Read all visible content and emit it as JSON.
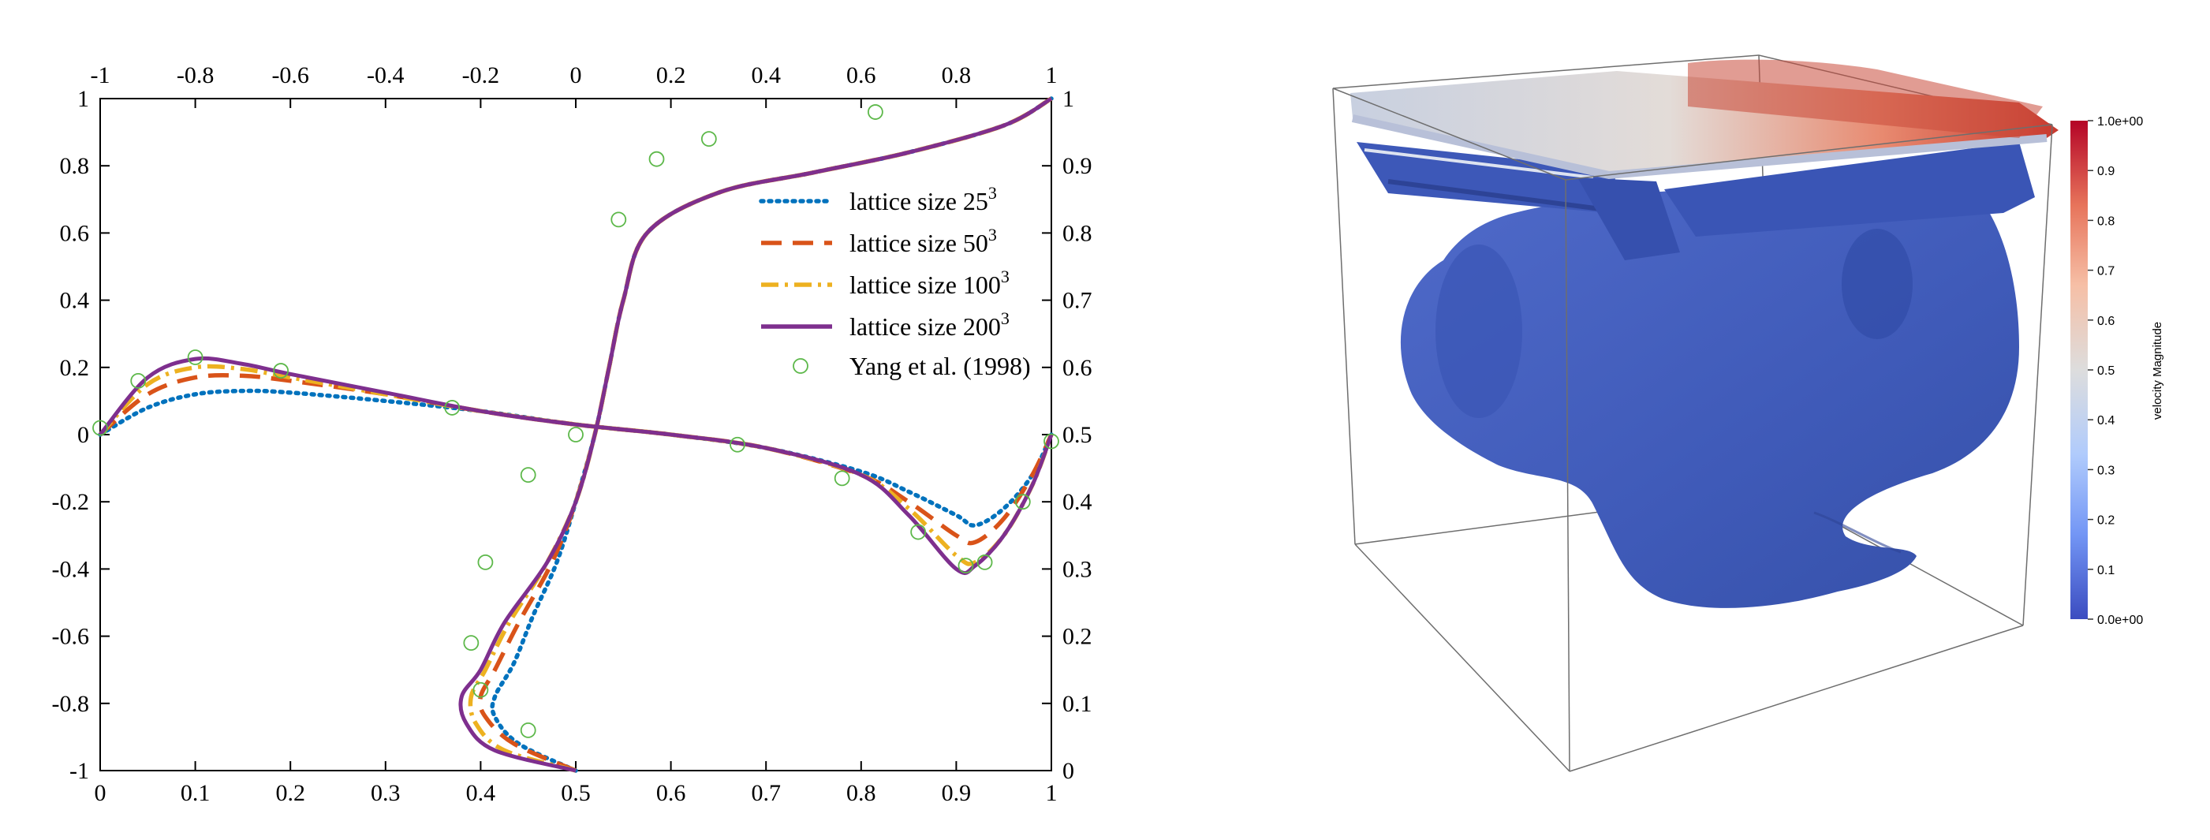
{
  "chart_data": [
    {
      "type": "line",
      "title": "",
      "axes": {
        "bottom": {
          "range": [
            0,
            1
          ],
          "ticks": [
            "0",
            "0.1",
            "0.2",
            "0.3",
            "0.4",
            "0.5",
            "0.6",
            "0.7",
            "0.8",
            "0.9",
            "1"
          ]
        },
        "top": {
          "range": [
            -1,
            1
          ],
          "ticks": [
            "-1",
            "-0.8",
            "-0.6",
            "-0.4",
            "-0.2",
            "0",
            "0.2",
            "0.4",
            "0.6",
            "0.8",
            "1"
          ]
        },
        "left": {
          "range": [
            -1,
            1
          ],
          "ticks": [
            "1",
            "0.8",
            "0.6",
            "0.4",
            "0.2",
            "0",
            "-0.2",
            "-0.4",
            "-0.6",
            "-0.8",
            "-1"
          ]
        },
        "right": {
          "range": [
            0,
            1
          ],
          "ticks": [
            "1",
            "0.9",
            "0.8",
            "0.7",
            "0.6",
            "0.5",
            "0.4",
            "0.3",
            "0.2",
            "0.1",
            "0"
          ]
        }
      },
      "grid": false,
      "legend_position": "right-inside",
      "series": [
        {
          "name": "lattice size 25",
          "sup": "3",
          "style": "dotted",
          "color": "#0072BD",
          "horizontal_profile": {
            "x": [
              0,
              0.05,
              0.1,
              0.15,
              0.2,
              0.3,
              0.4,
              0.5,
              0.6,
              0.7,
              0.8,
              0.85,
              0.9,
              0.92,
              0.95,
              0.98,
              1
            ],
            "y": [
              0,
              0.08,
              0.12,
              0.13,
              0.125,
              0.1,
              0.07,
              0.03,
              0.0,
              -0.04,
              -0.11,
              -0.17,
              -0.24,
              -0.27,
              -0.22,
              -0.12,
              0
            ]
          },
          "vertical_profile": {
            "u": [
              0.0,
              -0.12,
              -0.17,
              -0.17,
              -0.13,
              -0.09,
              -0.04,
              0.0,
              0.04,
              0.07,
              0.1,
              0.15,
              0.3,
              0.5,
              0.7,
              0.9,
              1.0
            ],
            "y": [
              0,
              0.04,
              0.08,
              0.11,
              0.16,
              0.23,
              0.31,
              0.4,
              0.5,
              0.6,
              0.7,
              0.8,
              0.86,
              0.89,
              0.92,
              0.96,
              1
            ]
          }
        },
        {
          "name": "lattice size 50",
          "sup": "3",
          "style": "dashed",
          "color": "#D95319",
          "horizontal_profile": {
            "x": [
              0,
              0.05,
              0.1,
              0.15,
              0.2,
              0.3,
              0.4,
              0.5,
              0.6,
              0.7,
              0.8,
              0.85,
              0.9,
              0.92,
              0.95,
              0.98,
              1
            ],
            "y": [
              0,
              0.12,
              0.17,
              0.175,
              0.16,
              0.12,
              0.07,
              0.03,
              0.0,
              -0.04,
              -0.12,
              -0.2,
              -0.3,
              -0.32,
              -0.25,
              -0.12,
              0
            ]
          },
          "vertical_profile": {
            "u": [
              0.0,
              -0.13,
              -0.19,
              -0.2,
              -0.17,
              -0.12,
              -0.05,
              0.0,
              0.04,
              0.07,
              0.1,
              0.15,
              0.3,
              0.5,
              0.7,
              0.9,
              1.0
            ],
            "y": [
              0,
              0.04,
              0.08,
              0.11,
              0.15,
              0.22,
              0.31,
              0.4,
              0.5,
              0.6,
              0.7,
              0.8,
              0.86,
              0.89,
              0.92,
              0.96,
              1
            ]
          }
        },
        {
          "name": "lattice size 100",
          "sup": "3",
          "style": "dashdot",
          "color": "#EDB120",
          "horizontal_profile": {
            "x": [
              0,
              0.05,
              0.1,
              0.15,
              0.2,
              0.3,
              0.4,
              0.5,
              0.6,
              0.7,
              0.8,
              0.85,
              0.9,
              0.92,
              0.95,
              0.98,
              1
            ],
            "y": [
              0,
              0.15,
              0.2,
              0.195,
              0.17,
              0.12,
              0.07,
              0.03,
              0.0,
              -0.04,
              -0.12,
              -0.22,
              -0.36,
              -0.38,
              -0.3,
              -0.15,
              0
            ]
          },
          "vertical_profile": {
            "u": [
              0.0,
              -0.15,
              -0.21,
              -0.22,
              -0.19,
              -0.14,
              -0.06,
              0.0,
              0.04,
              0.07,
              0.1,
              0.15,
              0.3,
              0.5,
              0.7,
              0.9,
              1.0
            ],
            "y": [
              0,
              0.03,
              0.07,
              0.11,
              0.15,
              0.22,
              0.31,
              0.4,
              0.5,
              0.6,
              0.7,
              0.8,
              0.86,
              0.89,
              0.92,
              0.96,
              1
            ]
          }
        },
        {
          "name": "lattice size 200",
          "sup": "3",
          "style": "solid",
          "color": "#7E2F8E",
          "horizontal_profile": {
            "x": [
              0,
              0.05,
              0.1,
              0.15,
              0.2,
              0.3,
              0.4,
              0.5,
              0.6,
              0.7,
              0.8,
              0.85,
              0.9,
              0.92,
              0.95,
              0.98,
              1
            ],
            "y": [
              0,
              0.17,
              0.225,
              0.21,
              0.18,
              0.125,
              0.07,
              0.03,
              0.0,
              -0.04,
              -0.12,
              -0.24,
              -0.4,
              -0.39,
              -0.3,
              -0.15,
              0
            ]
          },
          "vertical_profile": {
            "u": [
              0.0,
              -0.17,
              -0.23,
              -0.24,
              -0.2,
              -0.15,
              -0.06,
              0.0,
              0.04,
              0.07,
              0.1,
              0.15,
              0.3,
              0.5,
              0.7,
              0.9,
              1.0
            ],
            "y": [
              0,
              0.03,
              0.07,
              0.11,
              0.15,
              0.22,
              0.31,
              0.4,
              0.5,
              0.6,
              0.7,
              0.8,
              0.86,
              0.89,
              0.92,
              0.96,
              1
            ]
          }
        }
      ],
      "reference": {
        "name": "Yang et al. (1998)",
        "marker": "circle",
        "color": "#5DB84A",
        "horizontal_points": {
          "x": [
            0.0,
            0.04,
            0.1,
            0.19,
            0.37,
            0.5,
            0.67,
            0.78,
            0.86,
            0.91,
            0.93,
            0.97,
            1.0
          ],
          "y": [
            0.02,
            0.16,
            0.23,
            0.19,
            0.08,
            0.0,
            -0.03,
            -0.13,
            -0.29,
            -0.39,
            -0.38,
            -0.2,
            -0.02
          ]
        },
        "vertical_points": {
          "u": [
            -0.1,
            -0.2,
            -0.22,
            -0.19,
            -0.1,
            0.09,
            0.17,
            0.28,
            0.63
          ],
          "y": [
            0.06,
            0.12,
            0.19,
            0.31,
            0.44,
            0.82,
            0.91,
            0.94,
            0.98
          ]
        }
      }
    },
    {
      "type": "heatmap",
      "colorbar": {
        "label": "velocity Magnitude",
        "ticks": [
          "1.0e+00",
          "0.9",
          "0.8",
          "0.7",
          "0.6",
          "0.5",
          "0.4",
          "0.3",
          "0.2",
          "0.1",
          "0.0e+00"
        ],
        "range": [
          0,
          1
        ],
        "colors": [
          "#3B4CC0",
          "#7396F5",
          "#B0CBFC",
          "#DDDDDD",
          "#F6BFA6",
          "#E7745B",
          "#B40426"
        ]
      }
    }
  ]
}
